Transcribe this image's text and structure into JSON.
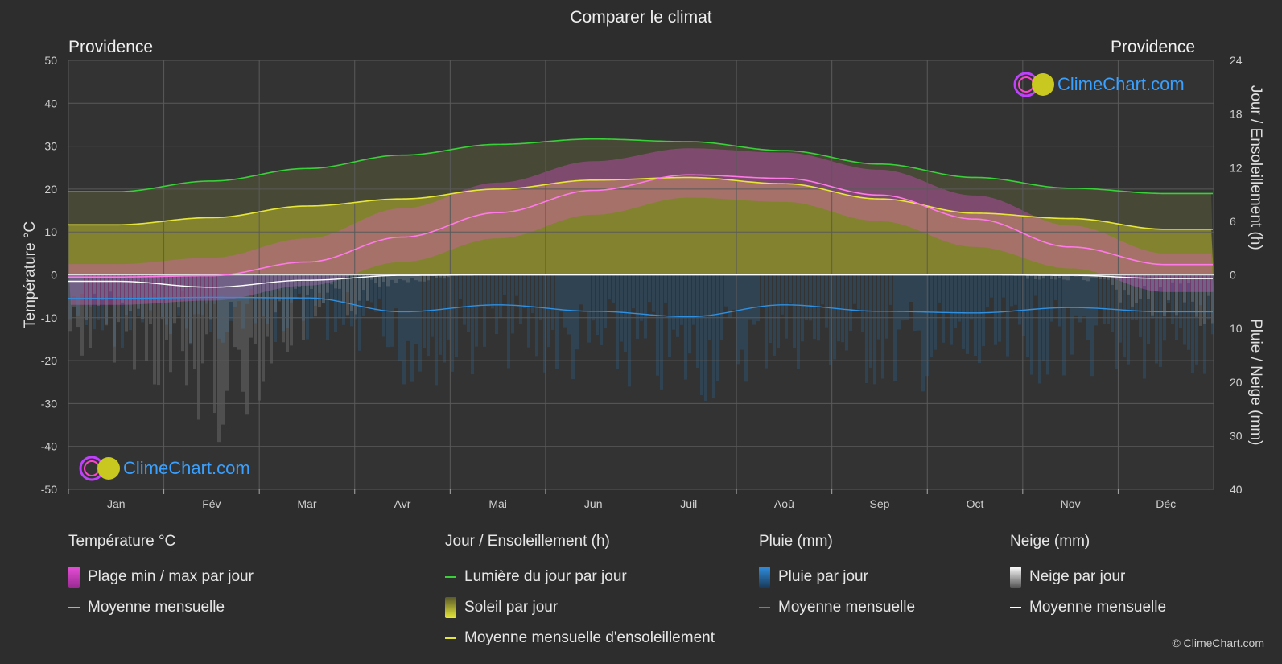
{
  "title": "Comparer le climat",
  "city_left": "Providence",
  "city_right": "Providence",
  "brand": "ClimeChart.com",
  "copyright": "© ClimeChart.com",
  "colors": {
    "background": "#2d2d2d",
    "temp_range": "#e64fd8",
    "temp_mean": "#ff7ae8",
    "daylight": "#39d039",
    "sunshine_fill": "#b5b52a",
    "sunshine_mean": "#e6e63a",
    "rain": "#2b7fc8",
    "rain_mean": "#2f8fe0",
    "snow": "#9a9a9a",
    "snow_mean": "#ffffff"
  },
  "chart_data": {
    "type": "line",
    "months": [
      "Jan",
      "Fév",
      "Mar",
      "Avr",
      "Mai",
      "Jun",
      "Juil",
      "Aoû",
      "Sep",
      "Oct",
      "Nov",
      "Déc"
    ],
    "left_axis": {
      "label": "Température °C",
      "min": -50,
      "max": 50,
      "ticks": [
        50,
        40,
        30,
        20,
        10,
        0,
        -10,
        -20,
        -30,
        -40,
        -50
      ]
    },
    "right_axis_top": {
      "label": "Jour / Ensoleillement (h)",
      "min": 0,
      "max": 24,
      "ticks": [
        24,
        18,
        12,
        6,
        0
      ]
    },
    "right_axis_bottom": {
      "label": "Pluie / Neige (mm)",
      "min": 0,
      "max": 40,
      "ticks": [
        0,
        10,
        20,
        30,
        40
      ]
    },
    "grid": true,
    "series": [
      {
        "name": "Lumière du jour par jour",
        "axis": "hours",
        "values": [
          9.3,
          10.5,
          11.9,
          13.4,
          14.6,
          15.2,
          14.9,
          13.9,
          12.4,
          10.9,
          9.7,
          9.1
        ]
      },
      {
        "name": "Moyenne mensuelle d'ensoleillement",
        "axis": "hours",
        "values": [
          5.6,
          6.4,
          7.7,
          8.5,
          9.6,
          10.6,
          10.9,
          10.2,
          8.5,
          6.9,
          6.3,
          5.1
        ]
      },
      {
        "name": "Moyenne mensuelle",
        "group": "Température °C",
        "axis": "temp",
        "values": [
          -0.5,
          -0.2,
          3.0,
          8.8,
          14.5,
          19.7,
          23.3,
          22.5,
          18.6,
          13.0,
          6.5,
          2.4
        ]
      },
      {
        "name": "Moyenne mensuelle",
        "group": "Pluie (mm)",
        "axis": "precip",
        "values": [
          4.4,
          4.2,
          4.3,
          6.9,
          5.6,
          6.8,
          7.8,
          5.6,
          6.8,
          7.1,
          6.1,
          6.9
        ]
      },
      {
        "name": "Moyenne mensuelle",
        "group": "Neige (mm)",
        "axis": "precip",
        "values": [
          1.2,
          2.3,
          1.0,
          0.1,
          0.0,
          0.0,
          0.0,
          0.0,
          0.0,
          0.0,
          0.1,
          0.7
        ]
      }
    ],
    "temp_daily_range": {
      "max": [
        2.5,
        4.0,
        8.5,
        15.5,
        21.5,
        26.5,
        29.5,
        28.5,
        24.5,
        18.5,
        11.5,
        5.0
      ],
      "min": [
        -7.0,
        -6.0,
        -2.5,
        3.0,
        8.5,
        14.0,
        18.0,
        17.0,
        12.5,
        6.5,
        1.5,
        -4.0
      ]
    }
  },
  "legend": {
    "temp": {
      "title": "Température °C",
      "items": [
        "Plage min / max par jour",
        "Moyenne mensuelle"
      ]
    },
    "sun": {
      "title": "Jour / Ensoleillement (h)",
      "items": [
        "Lumière du jour par jour",
        "Soleil par jour",
        "Moyenne mensuelle d'ensoleillement"
      ]
    },
    "rain": {
      "title": "Pluie (mm)",
      "items": [
        "Pluie par jour",
        "Moyenne mensuelle"
      ]
    },
    "snow": {
      "title": "Neige (mm)",
      "items": [
        "Neige par jour",
        "Moyenne mensuelle"
      ]
    }
  }
}
